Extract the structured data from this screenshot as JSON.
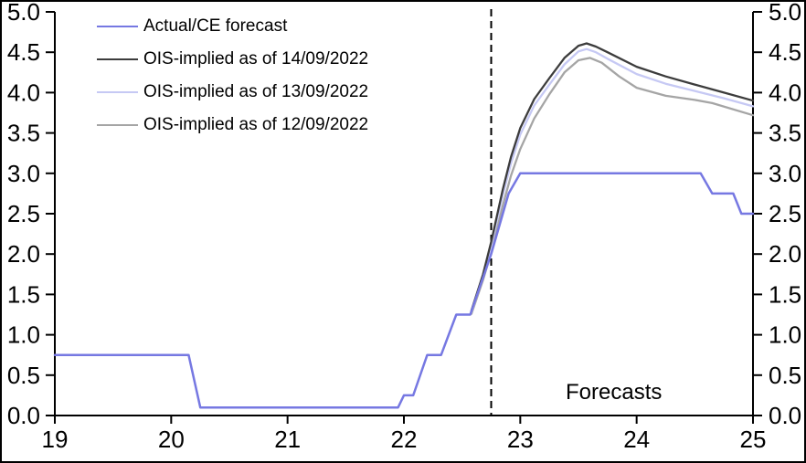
{
  "chart_data": {
    "type": "line",
    "title": "",
    "xlabel": "",
    "ylabel": "",
    "x_axis": {
      "min": 19,
      "max": 25,
      "ticks": [
        19,
        20,
        21,
        22,
        23,
        24,
        25
      ]
    },
    "y_axis_left": {
      "min": 0,
      "max": 5,
      "ticks": [
        0.0,
        0.5,
        1.0,
        1.5,
        2.0,
        2.5,
        3.0,
        3.5,
        4.0,
        4.5,
        5.0
      ]
    },
    "y_axis_right": {
      "min": 0,
      "max": 5,
      "ticks": [
        0.0,
        0.5,
        1.0,
        1.5,
        2.0,
        2.5,
        3.0,
        3.5,
        4.0,
        4.5,
        5.0
      ]
    },
    "grid": false,
    "legend_position": "top-left",
    "forecast_divider_x": 22.75,
    "annotation": {
      "text": "Forecasts",
      "x": 23.8,
      "y": 0.3
    },
    "series": [
      {
        "name": "Actual/CE forecast",
        "color": "#7678e2",
        "width": 2.5,
        "points": [
          [
            19,
            0.75
          ],
          [
            20.15,
            0.75
          ],
          [
            20.25,
            0.1
          ],
          [
            21.95,
            0.1
          ],
          [
            22.0,
            0.25
          ],
          [
            22.08,
            0.25
          ],
          [
            22.2,
            0.75
          ],
          [
            22.32,
            0.75
          ],
          [
            22.45,
            1.25
          ],
          [
            22.57,
            1.25
          ],
          [
            22.75,
            2.0
          ],
          [
            22.9,
            2.75
          ],
          [
            23.0,
            3.0
          ],
          [
            24.55,
            3.0
          ],
          [
            24.65,
            2.75
          ],
          [
            24.83,
            2.75
          ],
          [
            24.9,
            2.5
          ],
          [
            25,
            2.5
          ]
        ]
      },
      {
        "name": "OIS-implied as of 14/09/2022",
        "color": "#3c3c3c",
        "width": 2.3,
        "points": [
          [
            22.58,
            1.3
          ],
          [
            22.68,
            1.75
          ],
          [
            22.75,
            2.15
          ],
          [
            22.85,
            2.8
          ],
          [
            22.92,
            3.2
          ],
          [
            23.0,
            3.56
          ],
          [
            23.12,
            3.92
          ],
          [
            23.25,
            4.18
          ],
          [
            23.38,
            4.43
          ],
          [
            23.5,
            4.58
          ],
          [
            23.57,
            4.61
          ],
          [
            23.65,
            4.57
          ],
          [
            23.75,
            4.5
          ],
          [
            24.0,
            4.32
          ],
          [
            24.25,
            4.2
          ],
          [
            24.5,
            4.1
          ],
          [
            24.75,
            4.0
          ],
          [
            25,
            3.9
          ]
        ]
      },
      {
        "name": "OIS-implied as of 13/09/2022",
        "color": "#c6c9f4",
        "width": 2.3,
        "points": [
          [
            22.58,
            1.28
          ],
          [
            22.68,
            1.72
          ],
          [
            22.75,
            2.1
          ],
          [
            22.85,
            2.73
          ],
          [
            22.92,
            3.12
          ],
          [
            23.0,
            3.48
          ],
          [
            23.12,
            3.84
          ],
          [
            23.25,
            4.1
          ],
          [
            23.38,
            4.35
          ],
          [
            23.5,
            4.51
          ],
          [
            23.57,
            4.54
          ],
          [
            23.65,
            4.5
          ],
          [
            23.75,
            4.42
          ],
          [
            24.0,
            4.23
          ],
          [
            24.25,
            4.11
          ],
          [
            24.5,
            4.02
          ],
          [
            24.75,
            3.93
          ],
          [
            25,
            3.83
          ]
        ]
      },
      {
        "name": "OIS-implied as of 12/09/2022",
        "color": "#a5a5a5",
        "width": 2.3,
        "points": [
          [
            22.58,
            1.26
          ],
          [
            22.68,
            1.68
          ],
          [
            22.75,
            2.02
          ],
          [
            22.85,
            2.6
          ],
          [
            22.92,
            2.97
          ],
          [
            23.0,
            3.3
          ],
          [
            23.12,
            3.68
          ],
          [
            23.25,
            3.98
          ],
          [
            23.38,
            4.25
          ],
          [
            23.5,
            4.4
          ],
          [
            23.6,
            4.43
          ],
          [
            23.7,
            4.37
          ],
          [
            23.85,
            4.2
          ],
          [
            24.0,
            4.06
          ],
          [
            24.25,
            3.96
          ],
          [
            24.5,
            3.91
          ],
          [
            24.65,
            3.87
          ],
          [
            25,
            3.72
          ]
        ]
      }
    ]
  },
  "legend": {
    "items": [
      {
        "label": "Actual/CE forecast",
        "color": "#7678e2"
      },
      {
        "label": "OIS-implied as of 14/09/2022",
        "color": "#3c3c3c"
      },
      {
        "label": "OIS-implied as of 13/09/2022",
        "color": "#c6c9f4"
      },
      {
        "label": "OIS-implied as of 12/09/2022",
        "color": "#a5a5a5"
      }
    ]
  },
  "colors": {
    "axis": "#000000",
    "divider": "#000000",
    "background": "#ffffff"
  }
}
